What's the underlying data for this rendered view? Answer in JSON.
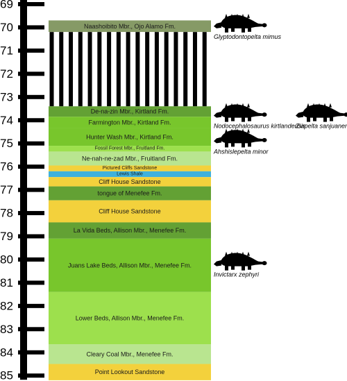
{
  "scale": {
    "ticks": [
      "69",
      "70",
      "71",
      "72",
      "73",
      "74",
      "75",
      "76",
      "77",
      "78",
      "79",
      "80",
      "81",
      "82",
      "83",
      "84",
      "85"
    ]
  },
  "colors": {
    "ojo_alamo": "#869a66",
    "dark_green": "#63a134",
    "mid_green": "#78c62c",
    "light_green": "#9de04d",
    "pale_green": "#b9e590",
    "yellow": "#f3d13c",
    "blue": "#3fb1dc",
    "hiatus_black": "#000000",
    "scale_bar": "#000000"
  },
  "units": [
    {
      "label": "Naashoibito Mbr., Ojo Alamo Fm.",
      "top": 69.7,
      "bottom": 70.2,
      "color": "#869a66",
      "size": 9
    },
    {
      "label": "",
      "top": 70.2,
      "bottom": 73.4,
      "color": "hiatus",
      "size": 0
    },
    {
      "label": "De-na-zin Mbr., Kirtland Fm.",
      "top": 73.4,
      "bottom": 73.85,
      "color": "#63a134",
      "size": 9
    },
    {
      "label": "Farmington Mbr., Kirtland Fm.",
      "top": 73.85,
      "bottom": 74.35,
      "color": "#78c62c",
      "size": 9
    },
    {
      "label": "Hunter Wash Mbr., Kirtland Fm.",
      "top": 74.35,
      "bottom": 75.1,
      "color": "#78c62c",
      "size": 9
    },
    {
      "label": "Fossil Forest Mbr., Fruitland Fm.",
      "top": 75.1,
      "bottom": 75.35,
      "color": "#9de04d",
      "size": 7
    },
    {
      "label": "Ne-nah-ne-zad Mbr., Fruitland Fm.",
      "top": 75.35,
      "bottom": 75.95,
      "color": "#b9e590",
      "size": 9
    },
    {
      "label": "Pictured Cliffs Sandstone",
      "top": 75.95,
      "bottom": 76.2,
      "color": "#f3d13c",
      "size": 7
    },
    {
      "label": "Lewis Shale",
      "top": 76.2,
      "bottom": 76.45,
      "color": "#3fb1dc",
      "size": 7
    },
    {
      "label": "Cliff House Sandstone",
      "top": 76.45,
      "bottom": 76.85,
      "color": "#f3d13c",
      "size": 9
    },
    {
      "label": "tongue of Menefee Fm.",
      "top": 76.85,
      "bottom": 77.45,
      "color": "#63a134",
      "size": 9
    },
    {
      "label": "Cliff House Sandstone",
      "top": 77.45,
      "bottom": 78.4,
      "color": "#f3d13c",
      "size": 9
    },
    {
      "label": "La Vida Beds, Allison Mbr., Menefee Fm.",
      "top": 78.4,
      "bottom": 79.1,
      "color": "#63a134",
      "size": 9
    },
    {
      "label": "Juans Lake Beds, Allison Mbr., Menefee Fm.",
      "top": 79.1,
      "bottom": 81.4,
      "color": "#78c62c",
      "size": 9
    },
    {
      "label": "Lower Beds, Allison Mbr., Menefee Fm.",
      "top": 81.4,
      "bottom": 83.65,
      "color": "#9de04d",
      "size": 9
    },
    {
      "label": "Cleary Coal Mbr., Menefee Fm.",
      "top": 83.65,
      "bottom": 84.5,
      "color": "#b9e590",
      "size": 9
    },
    {
      "label": "Point Lookout Sandstone",
      "top": 84.5,
      "bottom": 85.2,
      "color": "#f3d13c",
      "size": 9
    }
  ],
  "taxa": [
    {
      "name": "Glyptodontopelta mimus",
      "age": 70.25,
      "column": 0
    },
    {
      "name": "Nodocephalosaurus kirtlandensis",
      "age": 74.1,
      "column": 0
    },
    {
      "name": "Ziapelta sanjuanensis",
      "age": 74.1,
      "column": 1
    },
    {
      "name": "Ahshislepelta minor",
      "age": 75.2,
      "column": 0
    },
    {
      "name": "Invictarx zephyri",
      "age": 80.5,
      "column": 0
    }
  ]
}
